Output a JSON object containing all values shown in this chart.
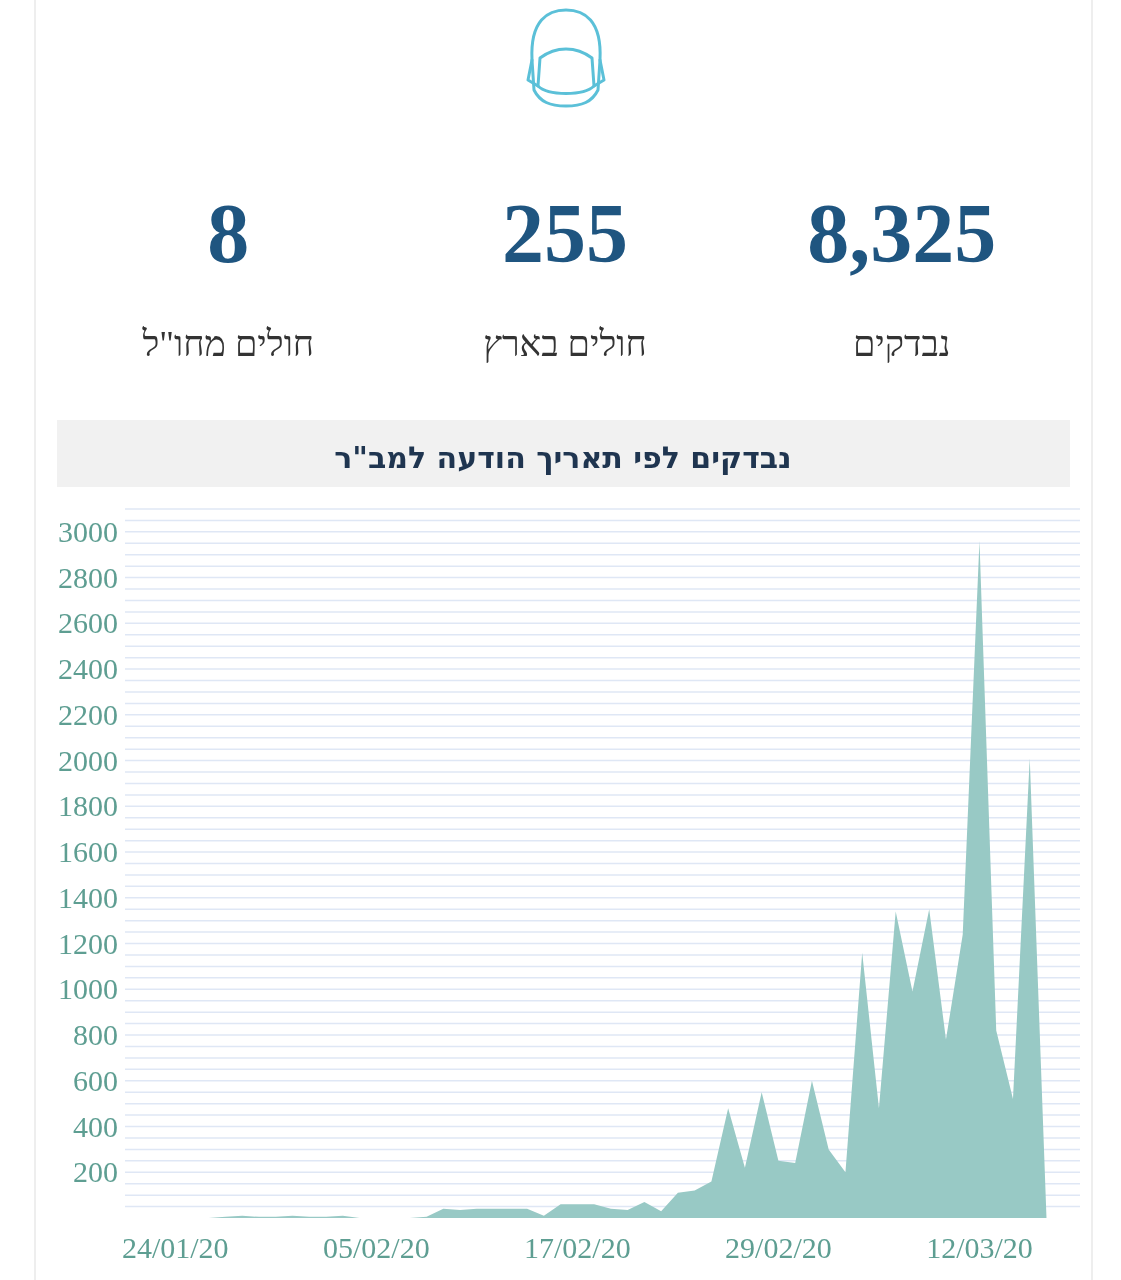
{
  "chart_data": [
    {
      "type": "other",
      "annotations": [
        "8,325",
        "נבדקים",
        "255",
        "חולים בארץ",
        "8",
        "חולים מחו\"ל"
      ]
    },
    {
      "type": "area",
      "title": "נבדקים לפי תאריך הודעה למב\"ר",
      "grid": "y",
      "x": [
        "2020-01-21",
        "2020-01-22",
        "2020-01-23",
        "2020-01-24",
        "2020-01-25",
        "2020-01-26",
        "2020-01-27",
        "2020-01-28",
        "2020-01-29",
        "2020-01-30",
        "2020-01-31",
        "2020-02-01",
        "2020-02-02",
        "2020-02-03",
        "2020-02-04",
        "2020-02-05",
        "2020-02-06",
        "2020-02-07",
        "2020-02-08",
        "2020-02-09",
        "2020-02-10",
        "2020-02-11",
        "2020-02-12",
        "2020-02-13",
        "2020-02-14",
        "2020-02-15",
        "2020-02-16",
        "2020-02-17",
        "2020-02-18",
        "2020-02-19",
        "2020-02-20",
        "2020-02-21",
        "2020-02-22",
        "2020-02-23",
        "2020-02-24",
        "2020-02-25",
        "2020-02-26",
        "2020-02-27",
        "2020-02-28",
        "2020-02-29",
        "2020-03-01",
        "2020-03-02",
        "2020-03-03",
        "2020-03-04",
        "2020-03-05",
        "2020-03-06",
        "2020-03-07",
        "2020-03-08",
        "2020-03-09",
        "2020-03-10",
        "2020-03-11",
        "2020-03-12",
        "2020-03-13",
        "2020-03-14",
        "2020-03-15",
        "2020-03-16"
      ],
      "series": [
        {
          "color": "#98c9c5",
          "values": [
            0,
            0,
            0,
            0,
            0,
            0,
            5,
            10,
            5,
            5,
            10,
            5,
            5,
            10,
            0,
            0,
            0,
            0,
            5,
            40,
            35,
            40,
            40,
            40,
            40,
            10,
            60,
            60,
            60,
            40,
            35,
            70,
            30,
            110,
            120,
            160,
            480,
            220,
            550,
            250,
            240,
            600,
            300,
            200,
            1160,
            480,
            1340,
            990,
            1350,
            780,
            1240,
            2960,
            820,
            520,
            2010,
            0
          ]
        }
      ],
      "xlim": [
        "2020-01-21",
        "2020-03-18"
      ],
      "xticks": [
        {
          "value": "2020-01-24",
          "label": "24/01/20"
        },
        {
          "value": "2020-02-05",
          "label": "05/02/20"
        },
        {
          "value": "2020-02-17",
          "label": "17/02/20"
        },
        {
          "value": "2020-02-29",
          "label": "29/02/20"
        },
        {
          "value": "2020-03-12",
          "label": "12/03/20"
        }
      ],
      "ylim": [
        0,
        3100
      ],
      "yticks": [
        {
          "value": 50,
          "label": null
        },
        {
          "value": 100,
          "label": null
        },
        {
          "value": 150,
          "label": null
        },
        200,
        {
          "value": 250,
          "label": null
        },
        {
          "value": 300,
          "label": null
        },
        {
          "value": 350,
          "label": null
        },
        400,
        {
          "value": 450,
          "label": null
        },
        {
          "value": 500,
          "label": null
        },
        {
          "value": 550,
          "label": null
        },
        600,
        {
          "value": 650,
          "label": null
        },
        {
          "value": 700,
          "label": null
        },
        {
          "value": 750,
          "label": null
        },
        800,
        {
          "value": 850,
          "label": null
        },
        {
          "value": 900,
          "label": null
        },
        {
          "value": 950,
          "label": null
        },
        1000,
        {
          "value": 1050,
          "label": null
        },
        {
          "value": 1100,
          "label": null
        },
        {
          "value": 1150,
          "label": null
        },
        1200,
        {
          "value": 1250,
          "label": null
        },
        {
          "value": 1300,
          "label": null
        },
        {
          "value": 1350,
          "label": null
        },
        1400,
        {
          "value": 1450,
          "label": null
        },
        {
          "value": 1500,
          "label": null
        },
        {
          "value": 1550,
          "label": null
        },
        1600,
        {
          "value": 1650,
          "label": null
        },
        {
          "value": 1700,
          "label": null
        },
        {
          "value": 1750,
          "label": null
        },
        1800,
        {
          "value": 1850,
          "label": null
        },
        {
          "value": 1900,
          "label": null
        },
        {
          "value": 1950,
          "label": null
        },
        2000,
        {
          "value": 2050,
          "label": null
        },
        {
          "value": 2100,
          "label": null
        },
        {
          "value": 2150,
          "label": null
        },
        2200,
        {
          "value": 2250,
          "label": null
        },
        {
          "value": 2300,
          "label": null
        },
        {
          "value": 2350,
          "label": null
        },
        2400,
        {
          "value": 2450,
          "label": null
        },
        {
          "value": 2500,
          "label": null
        },
        {
          "value": 2550,
          "label": null
        },
        2600,
        {
          "value": 2650,
          "label": null
        },
        {
          "value": 2700,
          "label": null
        },
        {
          "value": 2750,
          "label": null
        },
        2800,
        {
          "value": 2850,
          "label": null
        },
        {
          "value": 2900,
          "label": null
        },
        {
          "value": 2950,
          "label": null
        },
        3000,
        {
          "value": 3050,
          "label": null
        },
        {
          "value": 3100,
          "label": null
        }
      ]
    }
  ]
}
